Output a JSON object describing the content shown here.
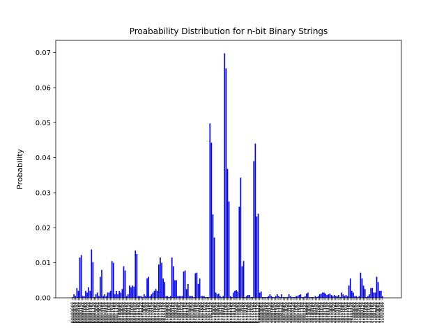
{
  "chart_data": {
    "type": "bar",
    "title": "Proabability Distribution for n-bit Binary Strings",
    "xlabel": "",
    "ylabel": "Probability",
    "ylim": [
      0,
      0.0735
    ],
    "yticks": [
      "0.00",
      "0.01",
      "0.02",
      "0.03",
      "0.04",
      "0.05",
      "0.06",
      "0.07"
    ],
    "bar_color": "#0000ff",
    "grid": false,
    "legend": "none",
    "x_tick_label_pattern": "binary strings, rotated 90°, densely overlapping (unreadable)",
    "values": [
      0.0002,
      0.001,
      0.0005,
      0.0028,
      0.002,
      0.0115,
      0.0122,
      0.0005,
      0.0005,
      0.002,
      0.0015,
      0.003,
      0.002,
      0.0138,
      0.0102,
      0.0002,
      0.001,
      0.0015,
      0.0005,
      0.006,
      0.008,
      0.0005,
      0.001,
      0.0005,
      0.0015,
      0.0015,
      0.002,
      0.0105,
      0.01,
      0.001,
      0.002,
      0.001,
      0.002,
      0.0015,
      0.0025,
      0.009,
      0.0078,
      0.0005,
      0.001,
      0.0035,
      0.003,
      0.0035,
      0.0032,
      0.0135,
      0.0125,
      0.0005,
      0.0005,
      0.0005,
      0.0002,
      0.001,
      0.0005,
      0.0055,
      0.006,
      0.0005,
      0.001,
      0.0015,
      0.002,
      0.0025,
      0.002,
      0.0095,
      0.0115,
      0.01,
      0.0055,
      0.0045,
      0.0005,
      0.0005,
      0.0002,
      0.0005,
      0.0115,
      0.009,
      0.005,
      0.005,
      0.0005,
      0.0005,
      0.0005,
      0.0005,
      0.0075,
      0.0078,
      0.0025,
      0.004,
      0.0005,
      0.0005,
      0.0005,
      0.0002,
      0.007,
      0.0072,
      0.004,
      0.0055,
      0.0005,
      0.0005,
      0.0005,
      0.0002,
      0.0002,
      0.0002,
      0.0498,
      0.0443,
      0.0238,
      0.0172,
      0.0015,
      0.001,
      0.0012,
      0.0005,
      0.0002,
      0.0005,
      0.0698,
      0.0655,
      0.0368,
      0.0275,
      0.0005,
      0.0002,
      0.0015,
      0.002,
      0.0022,
      0.0018,
      0.026,
      0.0343,
      0.009,
      0.0105,
      0.0002,
      0.0005,
      0.0008,
      0.0008,
      0.0002,
      0.0002,
      0.039,
      0.044,
      0.0232,
      0.024,
      0.0015,
      0.0018,
      0.0002,
      0.0002,
      0.0002,
      0.0002,
      0.0005,
      0.001,
      0.0005,
      0.0002,
      0.0002,
      0.0005,
      0.001,
      0.0005,
      0.0002,
      0.001,
      0.0002,
      0.0002,
      0.0002,
      0.0002,
      0.001,
      0.0005,
      0.0002,
      0.0002,
      0.0002,
      0.0005,
      0.0005,
      0.0008,
      0.001,
      0.0002,
      0.0002,
      0.0005,
      0.0012,
      0.0015,
      0.0002,
      0.0002,
      0.0002,
      0.0002,
      0.0005,
      0.0002,
      0.0005,
      0.001,
      0.0012,
      0.0015,
      0.0015,
      0.0012,
      0.0008,
      0.001,
      0.0012,
      0.0008,
      0.0005,
      0.0008,
      0.0005,
      0.0005,
      0.0008,
      0.0002,
      0.0015,
      0.001,
      0.0005,
      0.0008,
      0.0005,
      0.0035,
      0.0055,
      0.002,
      0.0015,
      0.0005,
      0.0005,
      0.0002,
      0.0005,
      0.0072,
      0.0055,
      0.0035,
      0.0025,
      0.0002,
      0.0005,
      0.001,
      0.0028,
      0.0028,
      0.0015,
      0.0015,
      0.006,
      0.0045,
      0.002,
      0.002,
      0.0005
    ]
  }
}
